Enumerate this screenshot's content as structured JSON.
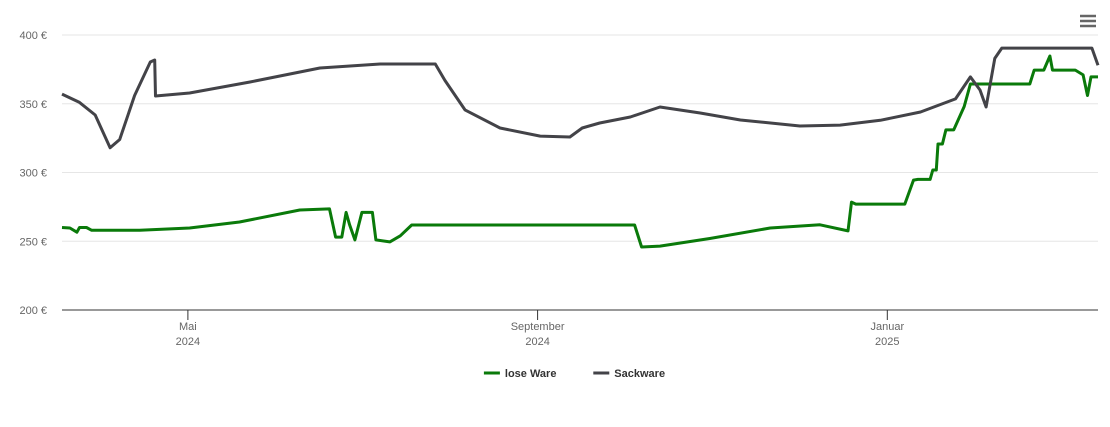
{
  "chart_data": {
    "type": "line",
    "xlim": [
      2.56,
      14.41
    ],
    "xticks": [
      {
        "value": 4,
        "label": "Mai 2024"
      },
      {
        "value": 8,
        "label": "September 2024"
      },
      {
        "value": 12,
        "label": "Januar 2025"
      }
    ],
    "ylim": [
      200,
      400
    ],
    "yticks": [
      {
        "value": 200,
        "label": "200 €"
      },
      {
        "value": 250,
        "label": "250 €"
      },
      {
        "value": 300,
        "label": "300 €"
      },
      {
        "value": 350,
        "label": "350 €"
      },
      {
        "value": 400,
        "label": "400 €"
      }
    ],
    "grid": true,
    "legend": "bottom",
    "series": [
      {
        "name": "lose Ware",
        "color": "#0a7a0a",
        "x": [
          2.56,
          2.65,
          2.73,
          2.76,
          2.84,
          2.9,
          3.45,
          4.02,
          4.59,
          5.28,
          5.62,
          5.69,
          5.76,
          5.81,
          5.85,
          5.91,
          5.99,
          6.11,
          6.15,
          6.31,
          6.43,
          6.56,
          9.11,
          9.19,
          9.4,
          9.97,
          10.66,
          11.23,
          11.55,
          11.59,
          11.64,
          12.2,
          12.3,
          12.35,
          12.49,
          12.52,
          12.56,
          12.58,
          12.63,
          12.67,
          12.76,
          12.88,
          12.95,
          13.63,
          13.68,
          13.79,
          13.83,
          13.86,
          13.89,
          14.15,
          14.24,
          14.29,
          14.33,
          14.41
        ],
        "values": [
          260,
          259.6,
          256.6,
          260,
          260,
          258,
          258,
          259.6,
          264,
          272.7,
          273.5,
          253,
          253,
          271,
          262,
          251,
          271,
          271,
          251,
          249.5,
          254,
          261.8,
          261.8,
          245.8,
          246.5,
          252,
          259.6,
          262,
          257.5,
          278.5,
          277,
          277,
          294.5,
          295,
          295,
          301.8,
          301.8,
          320.7,
          320.7,
          331,
          331,
          348,
          364.4,
          364.4,
          374.5,
          374.5,
          380.4,
          384.7,
          374.5,
          374.5,
          371,
          356,
          369.5,
          369.5
        ]
      },
      {
        "name": "Sackware",
        "color": "#434348",
        "x": [
          2.56,
          2.76,
          2.94,
          3.11,
          3.22,
          3.39,
          3.57,
          3.62,
          3.63,
          4.02,
          4.71,
          5.51,
          6.2,
          6.83,
          6.94,
          7.17,
          7.57,
          8.03,
          8.37,
          8.51,
          8.71,
          9.06,
          9.4,
          9.86,
          10.32,
          11.0,
          11.46,
          11.92,
          12.38,
          12.78,
          12.95,
          13.06,
          13.13,
          13.23,
          13.31,
          14.34,
          14.41
        ],
        "values": [
          357,
          351,
          341.8,
          318,
          324,
          356,
          380.4,
          381.8,
          355.6,
          357.8,
          365.8,
          376,
          378.9,
          378.9,
          367,
          345.5,
          332.4,
          326.5,
          325.8,
          332.4,
          336,
          340.4,
          347.6,
          343.3,
          338.2,
          333.8,
          334.5,
          338,
          344,
          353.5,
          369.5,
          360,
          347.6,
          383,
          390.5,
          390.5,
          378
        ]
      }
    ]
  }
}
